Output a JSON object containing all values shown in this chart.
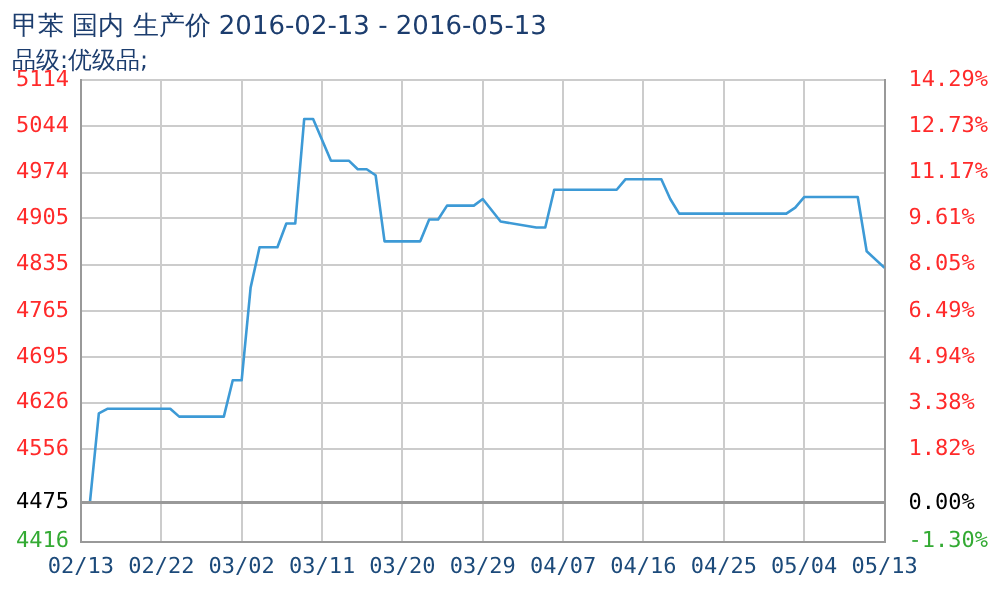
{
  "chart_data": {
    "type": "line",
    "title": "甲苯 国内 生产价 2016-02-13 - 2016-05-13",
    "subtitle": "品级:优级品;",
    "x": [
      "2016-02-13",
      "2016-02-14",
      "2016-02-15",
      "2016-02-16",
      "2016-02-23",
      "2016-02-24",
      "2016-02-29",
      "2016-03-01",
      "2016-03-02",
      "2016-03-03",
      "2016-03-04",
      "2016-03-06",
      "2016-03-07",
      "2016-03-08",
      "2016-03-09",
      "2016-03-10",
      "2016-03-12",
      "2016-03-14",
      "2016-03-15",
      "2016-03-16",
      "2016-03-17",
      "2016-03-18",
      "2016-03-22",
      "2016-03-23",
      "2016-03-24",
      "2016-03-25",
      "2016-03-28",
      "2016-03-29",
      "2016-03-31",
      "2016-04-04",
      "2016-04-05",
      "2016-04-06",
      "2016-04-13",
      "2016-04-14",
      "2016-04-18",
      "2016-04-19",
      "2016-04-20",
      "2016-05-02",
      "2016-05-03",
      "2016-05-04",
      "2016-05-10",
      "2016-05-11",
      "2016-05-13"
    ],
    "series": [
      {
        "color": "#3d9ad6",
        "values": [
          4475,
          4475,
          4610,
          4617,
          4617,
          4605,
          4605,
          4660,
          4660,
          4800,
          4861,
          4861,
          4897,
          4897,
          5055,
          5055,
          4992,
          4992,
          4979,
          4979,
          4970,
          4870,
          4870,
          4903,
          4903,
          4924,
          4924,
          4934,
          4900,
          4891,
          4891,
          4948,
          4948,
          4964,
          4964,
          4934,
          4912,
          4912,
          4921,
          4937,
          4937,
          4855,
          4830
        ]
      }
    ],
    "xlim": [
      "2016-02-13",
      "2016-05-13"
    ],
    "xticks": [
      {
        "value": "2016-02-13",
        "label": "02/13"
      },
      {
        "value": "2016-02-22",
        "label": "02/22"
      },
      {
        "value": "2016-03-02",
        "label": "03/02"
      },
      {
        "value": "2016-03-11",
        "label": "03/11"
      },
      {
        "value": "2016-03-20",
        "label": "03/20"
      },
      {
        "value": "2016-03-29",
        "label": "03/29"
      },
      {
        "value": "2016-04-07",
        "label": "04/07"
      },
      {
        "value": "2016-04-16",
        "label": "04/16"
      },
      {
        "value": "2016-04-25",
        "label": "04/25"
      },
      {
        "value": "2016-05-04",
        "label": "05/04"
      },
      {
        "value": "2016-05-13",
        "label": "05/13"
      }
    ],
    "ylim": [
      4416,
      5114
    ],
    "yticks": [
      4416,
      4475,
      4556,
      4626,
      4695,
      4765,
      4835,
      4905,
      4974,
      5044,
      5114
    ],
    "y2lim": [
      -1.3,
      14.29
    ],
    "y2ticks": [
      {
        "value": -1.3,
        "label": "-1.30%"
      },
      {
        "value": 0,
        "label": "0.00%"
      },
      {
        "value": 1.82,
        "label": "1.82%"
      },
      {
        "value": 3.38,
        "label": "3.38%"
      },
      {
        "value": 4.94,
        "label": "4.94%"
      },
      {
        "value": 6.49,
        "label": "6.49%"
      },
      {
        "value": 8.05,
        "label": "8.05%"
      },
      {
        "value": 9.61,
        "label": "9.61%"
      },
      {
        "value": 11.17,
        "label": "11.17%"
      },
      {
        "value": 12.73,
        "label": "12.73%"
      },
      {
        "value": 14.29,
        "label": "14.29%"
      }
    ],
    "ref_lines": [
      {
        "axis": "y",
        "value": 4475,
        "color": "#999999"
      }
    ],
    "grid": true,
    "legend": false,
    "marker": "none",
    "line_style": "solid"
  }
}
